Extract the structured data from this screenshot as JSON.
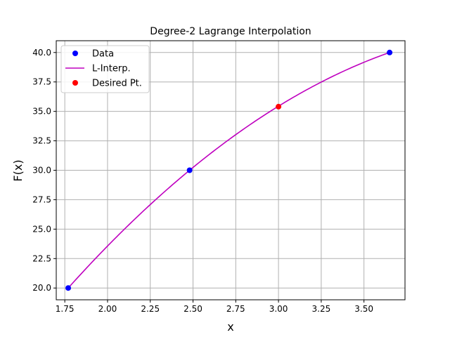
{
  "chart_data": {
    "type": "line",
    "title": "Degree-2 Lagrange Interpolation",
    "xlabel": "x",
    "ylabel": "F(x)",
    "xlim": [
      1.7,
      3.74
    ],
    "ylim": [
      19.0,
      41.0
    ],
    "xticks": [
      1.75,
      2.0,
      2.25,
      2.5,
      2.75,
      3.0,
      3.25,
      3.5
    ],
    "xtick_labels": [
      "1.75",
      "2.00",
      "2.25",
      "2.50",
      "2.75",
      "3.00",
      "3.25",
      "3.50"
    ],
    "yticks": [
      20.0,
      22.5,
      25.0,
      27.5,
      30.0,
      32.5,
      35.0,
      37.5,
      40.0
    ],
    "ytick_labels": [
      "20.0",
      "22.5",
      "25.0",
      "27.5",
      "30.0",
      "32.5",
      "35.0",
      "37.5",
      "40.0"
    ],
    "grid": true,
    "legend_position": "upper-left",
    "series": [
      {
        "name": "Data",
        "kind": "markers",
        "color": "#0000ff",
        "points": [
          [
            1.77,
            20.0
          ],
          [
            2.48,
            30.0
          ],
          [
            3.65,
            40.0
          ]
        ]
      },
      {
        "name": "L-Interp.",
        "kind": "line",
        "color": "#bf00bf",
        "x_range": [
          1.77,
          3.65
        ],
        "interpolates": [
          [
            1.77,
            20.0
          ],
          [
            2.48,
            30.0
          ],
          [
            3.65,
            40.0
          ]
        ]
      },
      {
        "name": "Desired Pt.",
        "kind": "markers",
        "color": "#ff0000",
        "points": [
          [
            3.0,
            35.4
          ]
        ]
      }
    ]
  }
}
